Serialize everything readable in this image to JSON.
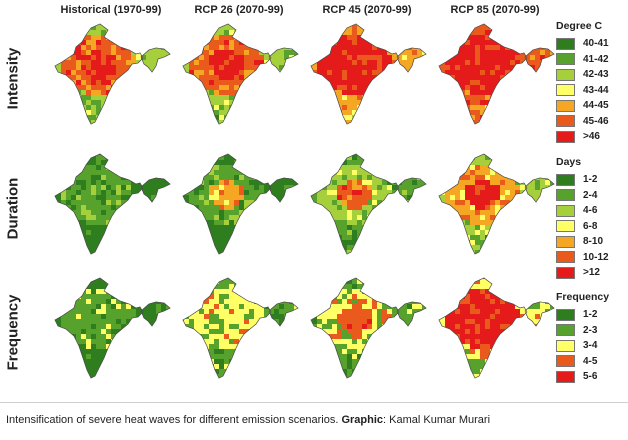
{
  "columns": [
    "Historical (1970-99)",
    "RCP 26 (2070-99)",
    "RCP 45 (2070-99)",
    "RCP 85 (2070-99)"
  ],
  "rows": [
    {
      "label": "Intensity",
      "legend_title": "Degree C",
      "legend": [
        {
          "label": "40-41",
          "color": "#2e7d1f"
        },
        {
          "label": "41-42",
          "color": "#56a22c"
        },
        {
          "label": "42-43",
          "color": "#a6cf3c"
        },
        {
          "label": "43-44",
          "color": "#ffff66"
        },
        {
          "label": "44-45",
          "color": "#f5a623"
        },
        {
          "label": "45-46",
          "color": "#ea5a1c"
        },
        {
          "label": ">46",
          "color": "#e51a1a"
        }
      ],
      "maps": [
        {
          "base": 5,
          "hot": 6,
          "edge": 2
        },
        {
          "base": 5,
          "hot": 6,
          "edge": 2
        },
        {
          "base": 6,
          "hot": 6,
          "edge": 4
        },
        {
          "base": 6,
          "hot": 6,
          "edge": 5
        }
      ]
    },
    {
      "label": "Duration",
      "legend_title": "Days",
      "legend": [
        {
          "label": "1-2",
          "color": "#2e7d1f"
        },
        {
          "label": "2-4",
          "color": "#56a22c"
        },
        {
          "label": "4-6",
          "color": "#a6cf3c"
        },
        {
          "label": "6-8",
          "color": "#ffff66"
        },
        {
          "label": "8-10",
          "color": "#f5a623"
        },
        {
          "label": "10-12",
          "color": "#ea5a1c"
        },
        {
          "label": ">12",
          "color": "#e51a1a"
        }
      ],
      "maps": [
        {
          "base": 1,
          "hot": 1,
          "edge": 0
        },
        {
          "base": 1,
          "hot": 4,
          "edge": 0
        },
        {
          "base": 2,
          "hot": 5,
          "edge": 1
        },
        {
          "base": 4,
          "hot": 6,
          "edge": 2
        }
      ]
    },
    {
      "label": "Frequency",
      "legend_title": "Frequency",
      "legend": [
        {
          "label": "1-2",
          "color": "#2e7d1f"
        },
        {
          "label": "2-3",
          "color": "#56a22c"
        },
        {
          "label": "3-4",
          "color": "#ffff66"
        },
        {
          "label": "4-5",
          "color": "#ea5a1c"
        },
        {
          "label": "5-6",
          "color": "#e51a1a"
        }
      ],
      "maps": [
        {
          "base": 1,
          "hot": 1,
          "edge": 0
        },
        {
          "base": 2,
          "hot": 2,
          "edge": 1
        },
        {
          "base": 2,
          "hot": 3,
          "edge": 1
        },
        {
          "base": 4,
          "hot": 4,
          "edge": 2
        }
      ]
    }
  ],
  "caption": {
    "text": "Intensification of severe heat waves for different emission scenarios. ",
    "credit_label": "Graphic",
    "credit_name": ": Kamal Kumar Murari"
  }
}
